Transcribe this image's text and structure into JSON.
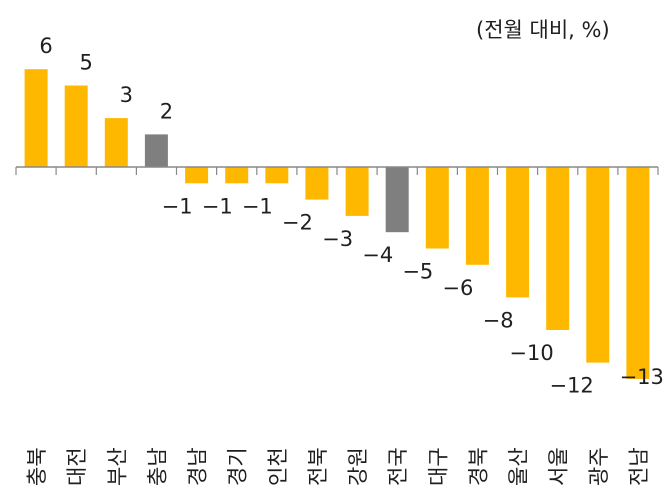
{
  "chart_data": {
    "type": "bar",
    "unit_note": "(전월 대비, %)",
    "categories": [
      "충북",
      "대전",
      "부산",
      "충남",
      "경남",
      "경기",
      "인천",
      "전북",
      "강원",
      "전국",
      "대구",
      "경북",
      "울산",
      "서울",
      "광주",
      "전남"
    ],
    "values": [
      6,
      5,
      3,
      2,
      -1,
      -1,
      -1,
      -2,
      -3,
      -4,
      -5,
      -6,
      -8,
      -10,
      -12,
      -13
    ],
    "value_labels": [
      "6",
      "5",
      "3",
      "2",
      "−1",
      "−1",
      "−1",
      "−2",
      "−3",
      "−4",
      "−5",
      "−6",
      "−8",
      "−10",
      "−12",
      "−13"
    ],
    "highlight_categories": [
      "충남",
      "전국"
    ],
    "colors": {
      "bar": "#FFB800",
      "highlight": "#7F7F7F",
      "axis": "#888888",
      "text": "#1f1f1f"
    },
    "title": "",
    "xlabel": "",
    "ylabel": "",
    "grid": false
  }
}
